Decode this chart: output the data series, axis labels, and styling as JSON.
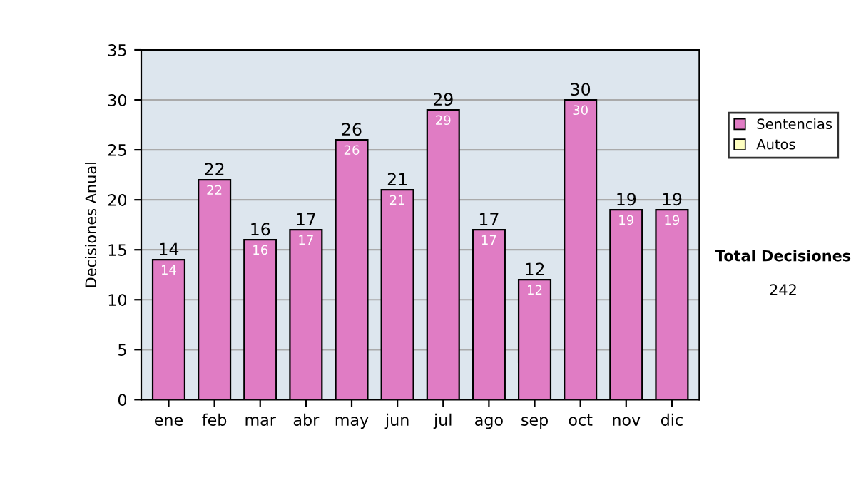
{
  "chart_data": {
    "type": "bar",
    "ylabel": "Decisiones Anual",
    "categories": [
      "ene",
      "feb",
      "mar",
      "abr",
      "may",
      "jun",
      "jul",
      "ago",
      "sep",
      "oct",
      "nov",
      "dic"
    ],
    "series": [
      {
        "name": "Sentencias",
        "color": "#e07cc4",
        "values": [
          14,
          22,
          16,
          17,
          26,
          21,
          29,
          17,
          12,
          30,
          19,
          19
        ],
        "value_labels": [
          "14",
          "22",
          "16",
          "17",
          "26",
          "21",
          "29",
          "17",
          "12",
          "30",
          "19",
          "19"
        ]
      },
      {
        "name": "Autos",
        "color": "#ffffc0",
        "values": [
          null,
          null,
          null,
          null,
          null,
          null,
          null,
          null,
          null,
          null,
          null,
          null
        ]
      }
    ],
    "stacked": true,
    "totals": [
      "14",
      "22",
      "16",
      "17",
      "26",
      "21",
      "29",
      "17",
      "12",
      "30",
      "19",
      "19"
    ],
    "ylim": [
      0,
      35
    ],
    "yticks": [
      0,
      5,
      10,
      15,
      20,
      25,
      30,
      35
    ],
    "grid": "y",
    "legend": "right",
    "annotations": [
      "Total Decisiones",
      "242"
    ]
  }
}
